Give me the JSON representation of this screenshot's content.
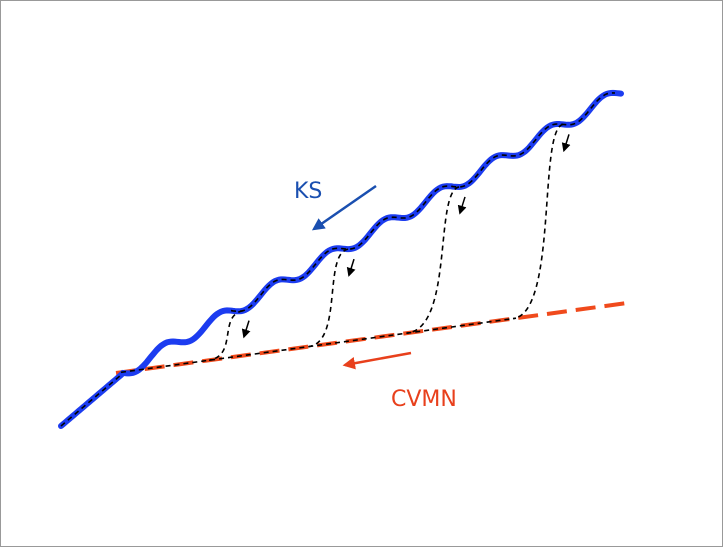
{
  "labels": {
    "ks": "KS",
    "cvmn": "CVMN"
  }
}
